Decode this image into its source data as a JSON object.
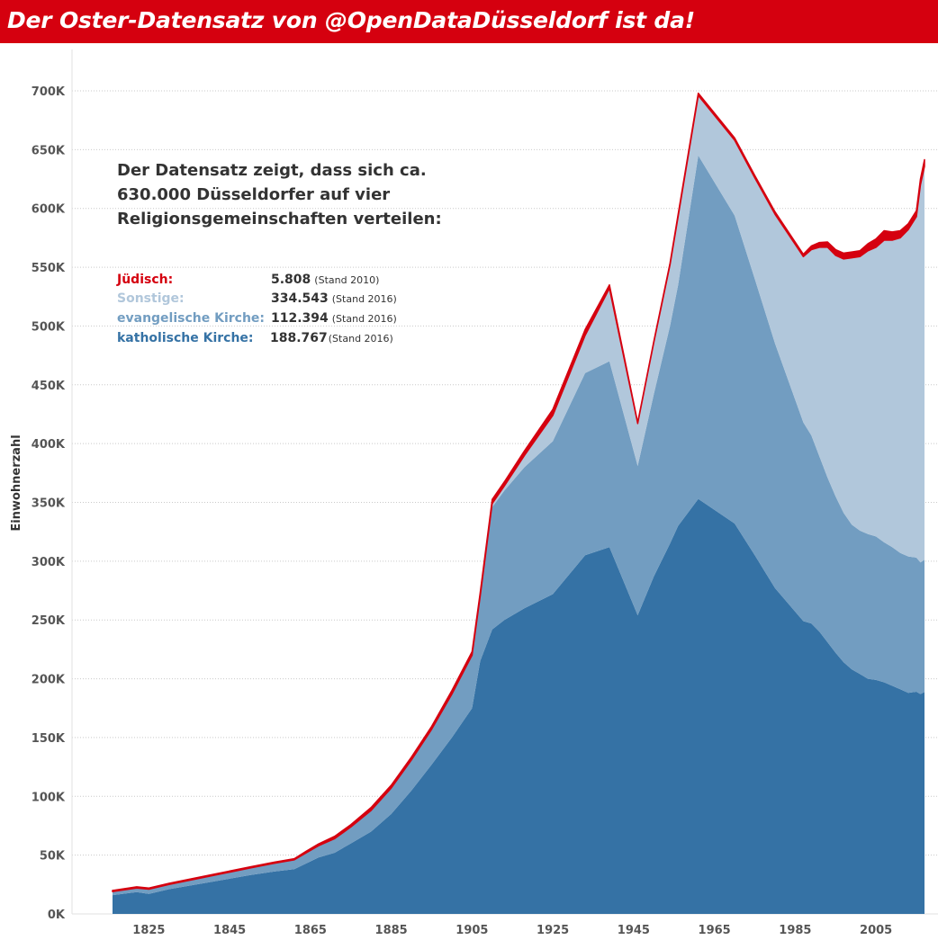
{
  "header": {
    "title": "Der Oster-Datensatz von @OpenDataDüsseldorf ist da!"
  },
  "colors": {
    "banner": "#d5000f",
    "katholisch": "#3572a5",
    "evangelisch": "#729dc1",
    "sonstige": "#b1c7db",
    "juedisch": "#d5000f"
  },
  "annotation": {
    "lines": [
      "Der Datensatz zeigt, dass sich ca.",
      "630.000 Düsseldorfer auf vier",
      "Religionsgemeinschaften verteilen:"
    ]
  },
  "legend": [
    {
      "label": "Jüdisch:",
      "value": "5.808",
      "note": "(Stand 2010)",
      "color": "#d5000f"
    },
    {
      "label": "Sonstige:",
      "value": "334.543",
      "note": "(Stand 2016)",
      "color": "#b1c7db"
    },
    {
      "label": "evangelische Kirche:",
      "value": "112.394",
      "note": "(Stand 2016)",
      "color": "#729dc1"
    },
    {
      "label": "katholische Kirche:",
      "value": "188.767",
      "note": "(Stand 2016)",
      "color": "#3572a5"
    }
  ],
  "chart_data": {
    "type": "area",
    "stacked": true,
    "title": "Der Oster-Datensatz von @OpenDataDüsseldorf ist da!",
    "xlabel": "",
    "ylabel": "Einwohnerzahl",
    "xlim": [
      1810,
      2022
    ],
    "ylim": [
      0,
      700000
    ],
    "grid": true,
    "x_ticks": [
      "1825",
      "1845",
      "1865",
      "1885",
      "1905",
      "1925",
      "1945",
      "1965",
      "1985",
      "2005"
    ],
    "y_ticks": [
      "0K",
      "50K",
      "100K",
      "150K",
      "200K",
      "250K",
      "300K",
      "350K",
      "400K",
      "450K",
      "500K",
      "550K",
      "600K",
      "650K",
      "700K"
    ],
    "x": [
      1816,
      1822,
      1825,
      1830,
      1840,
      1850,
      1856,
      1861,
      1864,
      1867,
      1871,
      1875,
      1880,
      1885,
      1890,
      1895,
      1900,
      1905,
      1907,
      1910,
      1913,
      1918,
      1925,
      1933,
      1939,
      1946,
      1950,
      1954,
      1956,
      1961,
      1970,
      1975,
      1980,
      1987,
      1989,
      1991,
      1993,
      1995,
      1997,
      1999,
      2001,
      2003,
      2005,
      2007,
      2009,
      2011,
      2013,
      2015,
      2016,
      2017
    ],
    "series": [
      {
        "name": "katholische Kirche",
        "values": [
          16000,
          18500,
          17000,
          21000,
          27000,
          33000,
          36000,
          38000,
          43000,
          48000,
          52000,
          60000,
          70000,
          85000,
          105000,
          127000,
          150000,
          175000,
          215000,
          242000,
          250000,
          260000,
          272000,
          305000,
          312000,
          254000,
          287000,
          315000,
          330000,
          353000,
          332000,
          305000,
          277000,
          249000,
          247000,
          240000,
          231000,
          222000,
          214000,
          208000,
          204000,
          200000,
          199000,
          197000,
          194000,
          191000,
          188000,
          189000,
          187000,
          188767
        ]
      },
      {
        "name": "evangelische Kirche",
        "values": [
          3000,
          3500,
          4000,
          4000,
          5000,
          6000,
          7000,
          8000,
          9000,
          10000,
          12000,
          14000,
          18000,
          22000,
          26000,
          30000,
          37000,
          45000,
          55000,
          104000,
          110000,
          120000,
          130000,
          155000,
          158000,
          127000,
          155000,
          185000,
          205000,
          292000,
          262000,
          235000,
          208000,
          169000,
          160000,
          149000,
          140000,
          133000,
          127000,
          123000,
          122000,
          123000,
          122000,
          119000,
          118000,
          116000,
          116000,
          114000,
          112000,
          112394
        ]
      },
      {
        "name": "Sonstige",
        "values": [
          0,
          0,
          0,
          0,
          0,
          0,
          0,
          0,
          0,
          0,
          0,
          0,
          0,
          0,
          0,
          0,
          0,
          0,
          0,
          3000,
          4000,
          10000,
          22000,
          32000,
          62000,
          36000,
          44000,
          52000,
          58000,
          51000,
          64000,
          86000,
          110000,
          141000,
          158000,
          178000,
          196000,
          205000,
          216000,
          227000,
          233000,
          241000,
          246000,
          257000,
          261000,
          268000,
          278000,
          290000,
          321000,
          334543
        ]
      },
      {
        "name": "Jüdisch",
        "values": [
          1000,
          1000,
          1000,
          1000,
          1000,
          1000,
          1000,
          1000,
          1500,
          1500,
          2000,
          2000,
          2500,
          2500,
          2500,
          2500,
          3000,
          3000,
          3000,
          3500,
          3500,
          4000,
          5000,
          5000,
          3000,
          1000,
          1000,
          1500,
          2000,
          2000,
          2000,
          2000,
          2000,
          2000,
          3000,
          4000,
          4500,
          5000,
          5000,
          5000,
          5000,
          6000,
          7000,
          8000,
          7000,
          6000,
          5000,
          5000,
          5000,
          5808
        ]
      }
    ]
  }
}
